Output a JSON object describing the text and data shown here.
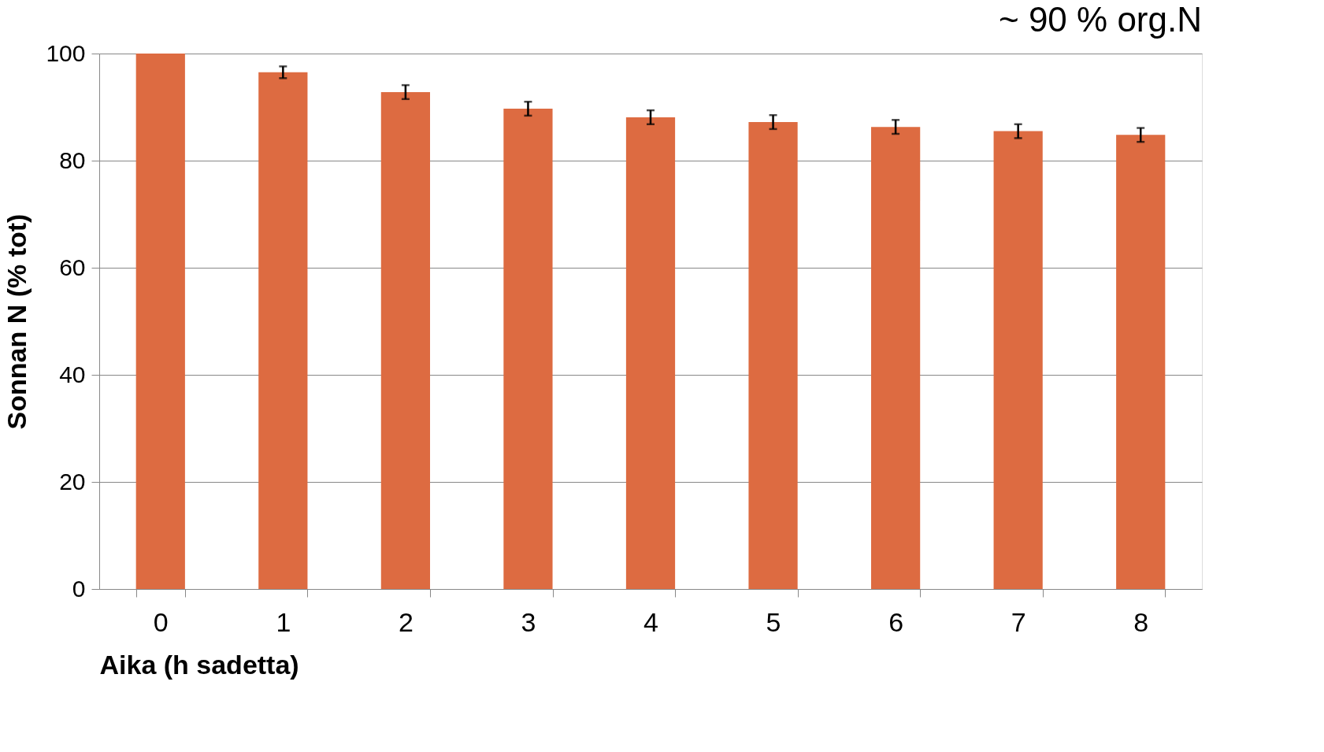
{
  "chart_data": {
    "type": "bar",
    "xlabel": "Aika (h sadetta)",
    "ylabel": "Sonnan N (% tot)",
    "categories": [
      "0",
      "1",
      "2",
      "3",
      "4",
      "5",
      "6",
      "7",
      "8"
    ],
    "values": [
      100,
      96.5,
      92.8,
      89.7,
      88.1,
      87.2,
      86.3,
      85.5,
      84.8
    ],
    "errors": [
      null,
      1.1,
      1.3,
      1.3,
      1.3,
      1.3,
      1.3,
      1.3,
      1.3
    ],
    "color": "#dd6b41",
    "ylim": [
      0,
      100
    ],
    "yticks": [
      0,
      20,
      40,
      60,
      80,
      100
    ],
    "grid": "y",
    "annotations": [
      "~ 90 % org.N"
    ]
  }
}
